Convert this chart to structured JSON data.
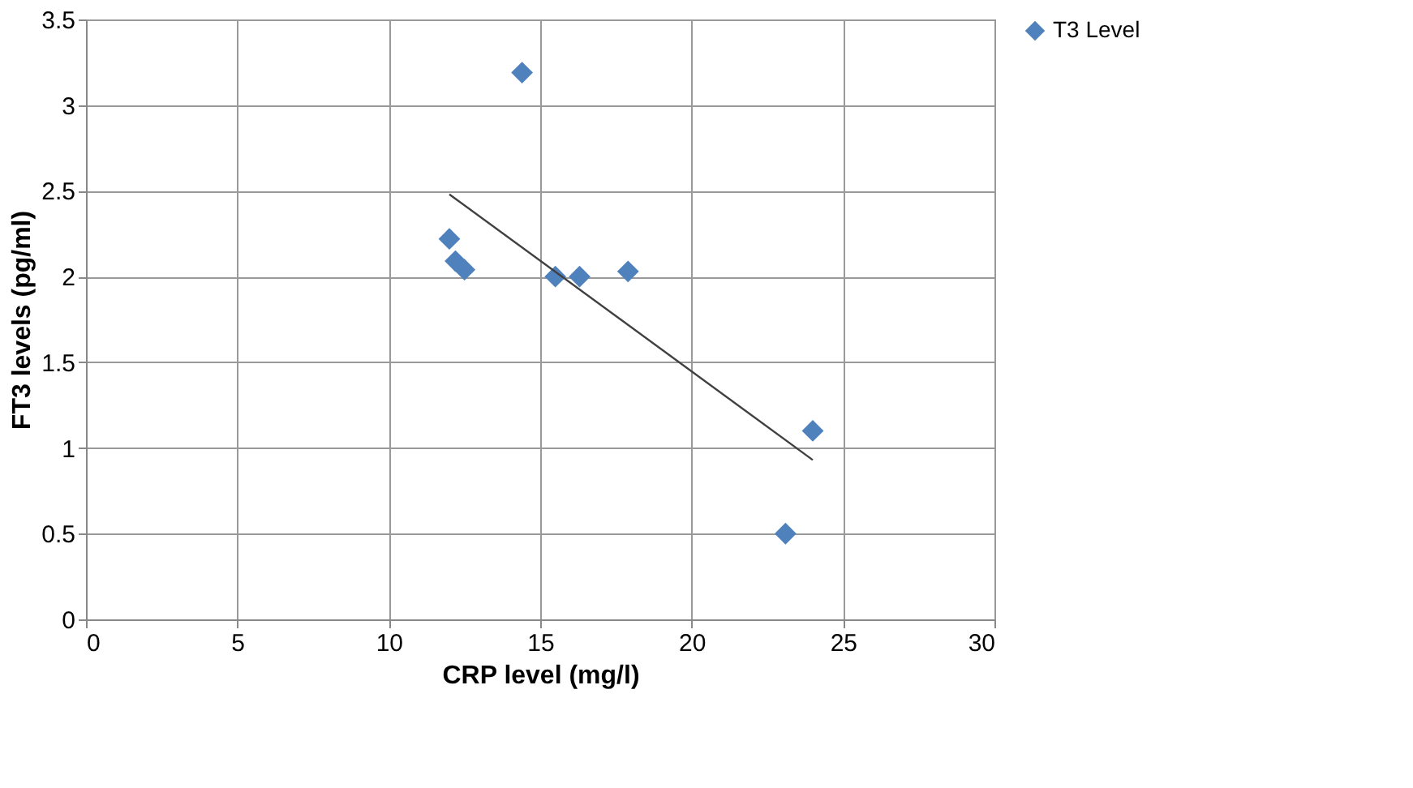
{
  "chart_data": {
    "type": "scatter",
    "xlabel": "CRP level (mg/l)",
    "ylabel": "FT3 levels (pg/ml)",
    "series": [
      {
        "name": "T3 Level",
        "color": "#4f81bd",
        "marker": "diamond",
        "x": [
          12,
          12.2,
          12.5,
          14.4,
          15.5,
          16.3,
          17.9,
          23.1,
          24.0
        ],
        "values": [
          2.22,
          2.09,
          2.04,
          3.19,
          2.0,
          2.0,
          2.03,
          0.5,
          1.1
        ]
      },
      {
        "color": "#404040",
        "type": "line",
        "marker": "none",
        "line_style": "solid",
        "x": [
          12,
          24
        ],
        "values": [
          2.48,
          0.93
        ]
      }
    ],
    "xlim": [
      0,
      30
    ],
    "xticks": [
      0,
      5,
      10,
      15,
      20,
      25,
      30
    ],
    "ylim": [
      0,
      3.5
    ],
    "yticks": [
      0,
      0.5,
      1,
      1.5,
      2,
      2.5,
      3,
      3.5
    ],
    "grid": true,
    "legend": "top right"
  }
}
